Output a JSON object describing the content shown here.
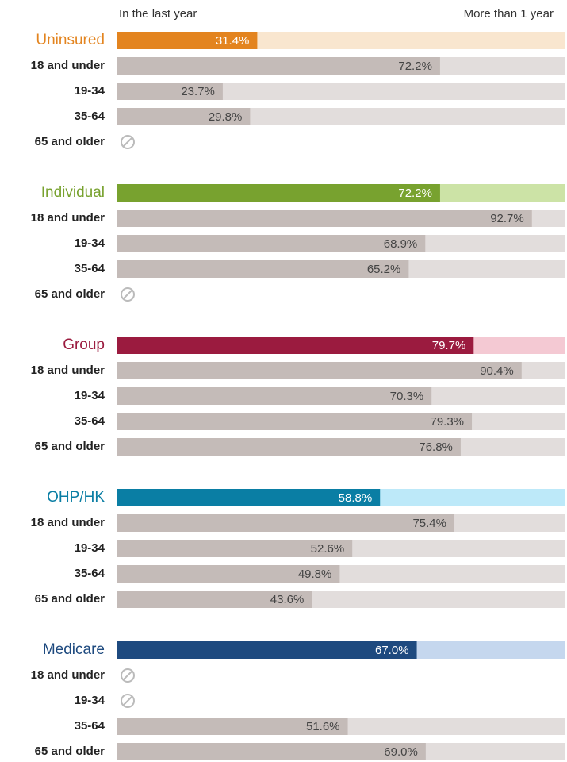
{
  "chart_data": {
    "type": "bar",
    "legend": [
      "In the last year",
      "More than 1 year"
    ],
    "xlim": [
      0,
      100
    ],
    "row_color": "#c4bbb8",
    "row_track_color": "#e2dddc",
    "groups": [
      {
        "name": "Uninsured",
        "color": "#e3841f",
        "track_color": "#f9e6cf",
        "value": 31.4,
        "value_label": "31.4%",
        "categories": [
          "18 and under",
          "19-34",
          "35-64",
          "65 and older"
        ],
        "values": [
          72.2,
          23.7,
          29.8,
          null
        ],
        "value_labels": [
          "72.2%",
          "23.7%",
          "29.8%",
          null
        ]
      },
      {
        "name": "Individual",
        "color": "#78a22f",
        "track_color": "#cce3a6",
        "value": 72.2,
        "value_label": "72.2%",
        "categories": [
          "18 and under",
          "19-34",
          "35-64",
          "65 and older"
        ],
        "values": [
          92.7,
          68.9,
          65.2,
          null
        ],
        "value_labels": [
          "92.7%",
          "68.9%",
          "65.2%",
          null
        ]
      },
      {
        "name": "Group",
        "color": "#9b1b3f",
        "track_color": "#f4c9d3",
        "value": 79.7,
        "value_label": "79.7%",
        "categories": [
          "18 and under",
          "19-34",
          "35-64",
          "65 and older"
        ],
        "values": [
          90.4,
          70.3,
          79.3,
          76.8
        ],
        "value_labels": [
          "90.4%",
          "70.3%",
          "79.3%",
          "76.8%"
        ]
      },
      {
        "name": "OHP/HK",
        "color": "#0a7ea4",
        "track_color": "#bde9f9",
        "value": 58.8,
        "value_label": "58.8%",
        "categories": [
          "18 and under",
          "19-34",
          "35-64",
          "65 and older"
        ],
        "values": [
          75.4,
          52.6,
          49.8,
          43.6
        ],
        "value_labels": [
          "75.4%",
          "52.6%",
          "49.8%",
          "43.6%"
        ]
      },
      {
        "name": "Medicare",
        "color": "#1e4a7f",
        "track_color": "#c5d7ee",
        "value": 67.0,
        "value_label": "67.0%",
        "categories": [
          "18 and under",
          "19-34",
          "35-64",
          "65 and older"
        ],
        "values": [
          null,
          null,
          51.6,
          69.0
        ],
        "value_labels": [
          null,
          null,
          "51.6%",
          "69.0%"
        ]
      }
    ]
  }
}
